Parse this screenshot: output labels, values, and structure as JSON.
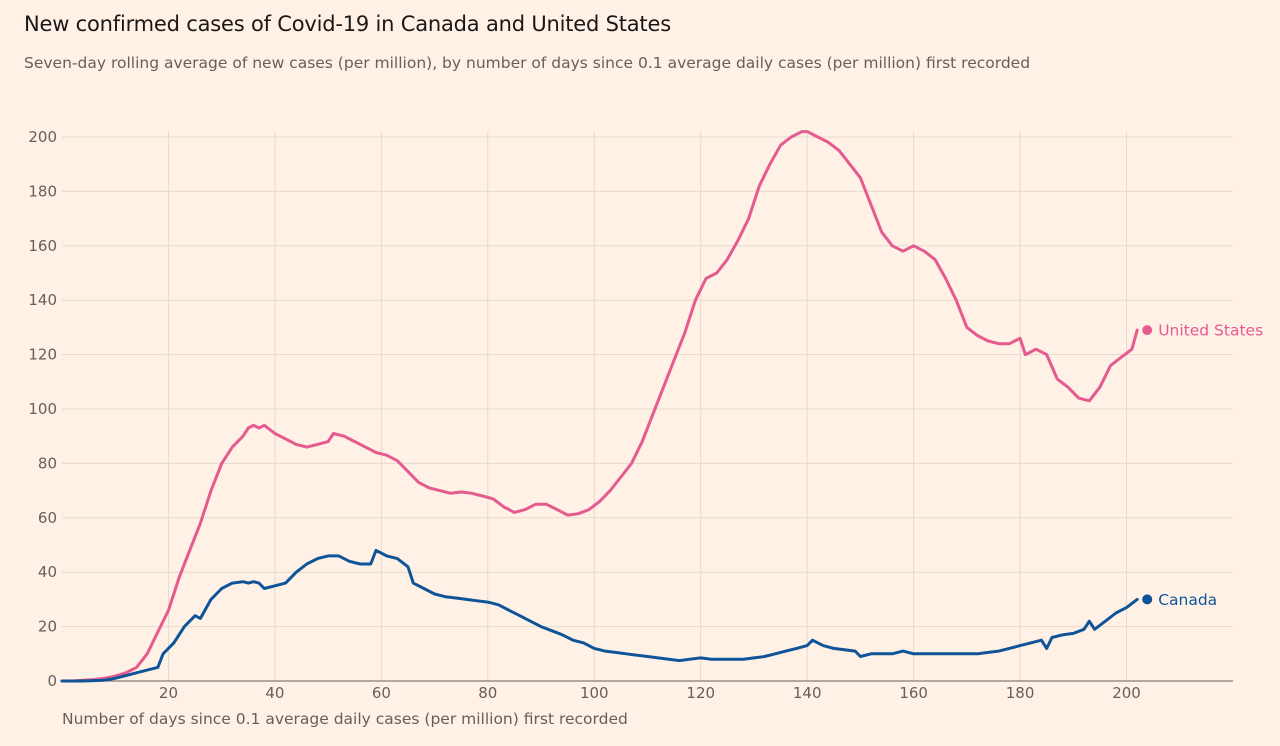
{
  "chart_data": {
    "type": "line",
    "title": "New confirmed cases of Covid-19 in Canada and United States",
    "subtitle": "Seven-day rolling average of new cases (per million), by number of days since 0.1 average daily cases (per million) first recorded",
    "xlabel": "Number of days since 0.1 average daily cases (per million) first recorded",
    "ylabel": "",
    "xlim": [
      0,
      220
    ],
    "ylim": [
      0,
      200
    ],
    "xticks": [
      20,
      40,
      60,
      80,
      100,
      120,
      140,
      160,
      180,
      200
    ],
    "yticks": [
      0,
      20,
      40,
      60,
      80,
      100,
      120,
      140,
      160,
      180,
      200
    ],
    "grid": true,
    "legend": "direct labels at line ends",
    "colors": {
      "United States": "#e55a8f",
      "Canada": "#0f5499"
    },
    "series": [
      {
        "name": "United States",
        "color": "#e55a8f",
        "points": [
          [
            0,
            0
          ],
          [
            2,
            0
          ],
          [
            4,
            0.3
          ],
          [
            6,
            0.5
          ],
          [
            8,
            1
          ],
          [
            10,
            1.8
          ],
          [
            12,
            3
          ],
          [
            14,
            5
          ],
          [
            16,
            10
          ],
          [
            18,
            18
          ],
          [
            20,
            26
          ],
          [
            22,
            38
          ],
          [
            24,
            48
          ],
          [
            26,
            58
          ],
          [
            28,
            70
          ],
          [
            30,
            80
          ],
          [
            32,
            86
          ],
          [
            34,
            90
          ],
          [
            35,
            93
          ],
          [
            36,
            94
          ],
          [
            37,
            93
          ],
          [
            38,
            94
          ],
          [
            40,
            91
          ],
          [
            42,
            89
          ],
          [
            44,
            87
          ],
          [
            46,
            86
          ],
          [
            48,
            87
          ],
          [
            50,
            88
          ],
          [
            51,
            91
          ],
          [
            53,
            90
          ],
          [
            55,
            88
          ],
          [
            57,
            86
          ],
          [
            59,
            84
          ],
          [
            61,
            83
          ],
          [
            63,
            81
          ],
          [
            65,
            77
          ],
          [
            67,
            73
          ],
          [
            69,
            71
          ],
          [
            71,
            70
          ],
          [
            73,
            69
          ],
          [
            75,
            69.5
          ],
          [
            77,
            69
          ],
          [
            79,
            68
          ],
          [
            81,
            67
          ],
          [
            83,
            64
          ],
          [
            85,
            62
          ],
          [
            87,
            63
          ],
          [
            89,
            65
          ],
          [
            91,
            65
          ],
          [
            93,
            63
          ],
          [
            95,
            61
          ],
          [
            97,
            61.5
          ],
          [
            99,
            63
          ],
          [
            101,
            66
          ],
          [
            103,
            70
          ],
          [
            105,
            75
          ],
          [
            107,
            80
          ],
          [
            109,
            88
          ],
          [
            111,
            98
          ],
          [
            113,
            108
          ],
          [
            115,
            118
          ],
          [
            117,
            128
          ],
          [
            119,
            140
          ],
          [
            121,
            148
          ],
          [
            123,
            150
          ],
          [
            125,
            155
          ],
          [
            127,
            162
          ],
          [
            129,
            170
          ],
          [
            131,
            182
          ],
          [
            133,
            190
          ],
          [
            135,
            197
          ],
          [
            137,
            200
          ],
          [
            138,
            201
          ],
          [
            139,
            202
          ],
          [
            140,
            202
          ],
          [
            142,
            200
          ],
          [
            144,
            198
          ],
          [
            146,
            195
          ],
          [
            148,
            190
          ],
          [
            150,
            185
          ],
          [
            152,
            175
          ],
          [
            154,
            165
          ],
          [
            156,
            160
          ],
          [
            158,
            158
          ],
          [
            160,
            160
          ],
          [
            162,
            158
          ],
          [
            164,
            155
          ],
          [
            166,
            148
          ],
          [
            168,
            140
          ],
          [
            170,
            130
          ],
          [
            172,
            127
          ],
          [
            174,
            125
          ],
          [
            176,
            124
          ],
          [
            178,
            124
          ],
          [
            180,
            126
          ],
          [
            181,
            120
          ],
          [
            183,
            122
          ],
          [
            185,
            120
          ],
          [
            187,
            111
          ],
          [
            189,
            108
          ],
          [
            191,
            104
          ],
          [
            193,
            103
          ],
          [
            195,
            108
          ],
          [
            197,
            116
          ],
          [
            199,
            119
          ],
          [
            201,
            122
          ],
          [
            202,
            129
          ]
        ]
      },
      {
        "name": "Canada",
        "color": "#0f5499",
        "points": [
          [
            0,
            0
          ],
          [
            4,
            0
          ],
          [
            8,
            0.3
          ],
          [
            10,
            1
          ],
          [
            12,
            2
          ],
          [
            14,
            3
          ],
          [
            16,
            4
          ],
          [
            18,
            5
          ],
          [
            19,
            10
          ],
          [
            21,
            14
          ],
          [
            23,
            20
          ],
          [
            25,
            24
          ],
          [
            26,
            23
          ],
          [
            28,
            30
          ],
          [
            30,
            34
          ],
          [
            32,
            36
          ],
          [
            34,
            36.5
          ],
          [
            35,
            36
          ],
          [
            36,
            36.5
          ],
          [
            37,
            36
          ],
          [
            38,
            34
          ],
          [
            40,
            35
          ],
          [
            42,
            36
          ],
          [
            44,
            40
          ],
          [
            46,
            43
          ],
          [
            48,
            45
          ],
          [
            50,
            46
          ],
          [
            52,
            46
          ],
          [
            54,
            44
          ],
          [
            56,
            43
          ],
          [
            58,
            43
          ],
          [
            59,
            48
          ],
          [
            61,
            46
          ],
          [
            63,
            45
          ],
          [
            65,
            42
          ],
          [
            66,
            36
          ],
          [
            68,
            34
          ],
          [
            70,
            32
          ],
          [
            72,
            31
          ],
          [
            74,
            30.5
          ],
          [
            76,
            30
          ],
          [
            78,
            29.5
          ],
          [
            80,
            29
          ],
          [
            82,
            28
          ],
          [
            84,
            26
          ],
          [
            86,
            24
          ],
          [
            88,
            22
          ],
          [
            90,
            20
          ],
          [
            92,
            18.5
          ],
          [
            94,
            17
          ],
          [
            96,
            15
          ],
          [
            98,
            14
          ],
          [
            100,
            12
          ],
          [
            102,
            11
          ],
          [
            104,
            10.5
          ],
          [
            106,
            10
          ],
          [
            108,
            9.5
          ],
          [
            110,
            9
          ],
          [
            112,
            8.5
          ],
          [
            114,
            8
          ],
          [
            116,
            7.5
          ],
          [
            118,
            8
          ],
          [
            120,
            8.5
          ],
          [
            122,
            8
          ],
          [
            124,
            8
          ],
          [
            126,
            8
          ],
          [
            128,
            8
          ],
          [
            130,
            8.5
          ],
          [
            132,
            9
          ],
          [
            134,
            10
          ],
          [
            136,
            11
          ],
          [
            138,
            12
          ],
          [
            140,
            13
          ],
          [
            141,
            15
          ],
          [
            143,
            13
          ],
          [
            145,
            12
          ],
          [
            147,
            11.5
          ],
          [
            149,
            11
          ],
          [
            150,
            9
          ],
          [
            152,
            10
          ],
          [
            154,
            10
          ],
          [
            156,
            10
          ],
          [
            158,
            11
          ],
          [
            160,
            10
          ],
          [
            162,
            10
          ],
          [
            164,
            10
          ],
          [
            166,
            10
          ],
          [
            168,
            10
          ],
          [
            170,
            10
          ],
          [
            172,
            10
          ],
          [
            174,
            10.5
          ],
          [
            176,
            11
          ],
          [
            178,
            12
          ],
          [
            180,
            13
          ],
          [
            182,
            14
          ],
          [
            184,
            15
          ],
          [
            185,
            12
          ],
          [
            186,
            16
          ],
          [
            188,
            17
          ],
          [
            190,
            17.5
          ],
          [
            192,
            19
          ],
          [
            193,
            22
          ],
          [
            194,
            19
          ],
          [
            196,
            22
          ],
          [
            198,
            25
          ],
          [
            200,
            27
          ],
          [
            202,
            30
          ]
        ]
      }
    ]
  }
}
